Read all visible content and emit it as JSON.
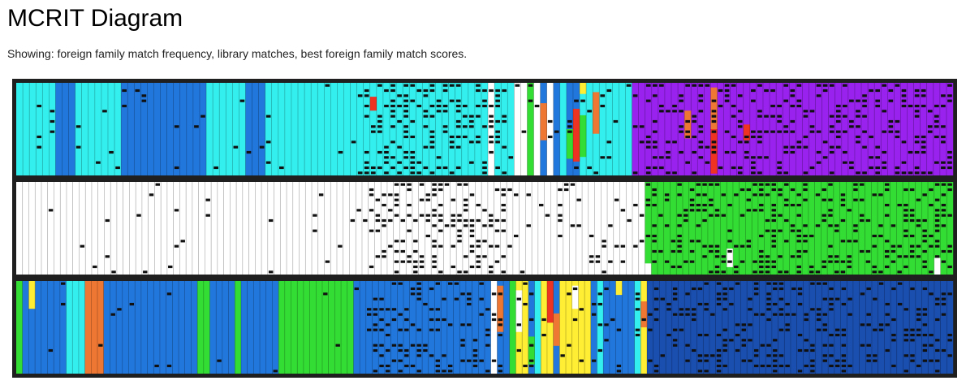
{
  "page": {
    "title": "MCRIT Diagram",
    "subtitle": "Showing: foreign family match frequency, library matches, best foreign family match scores."
  },
  "diagram": {
    "rows": [
      {
        "segments": [
          [
            "#33f0ee",
            6
          ],
          [
            "#2277dd",
            3
          ],
          [
            "#33f0ee",
            7
          ],
          [
            "#2277dd",
            13
          ],
          [
            "#33f0ee",
            6
          ],
          [
            "#2277dd",
            3
          ],
          [
            "#33f0ee",
            12
          ],
          [
            "#33f0ee",
            22
          ],
          [
            "#ffffff",
            1
          ],
          [
            "#33f0ee",
            3
          ],
          [
            "#ffffff",
            2
          ],
          [
            "#33dd33",
            1
          ],
          [
            "#ffffff",
            1
          ],
          [
            "#2277dd",
            1
          ],
          [
            "#ffffff",
            1
          ],
          [
            "#2277dd",
            1
          ],
          [
            "#33f0ee",
            1
          ],
          [
            "#2277dd",
            2
          ],
          [
            "#33f0ee",
            8
          ],
          [
            "#9922ee",
            49
          ]
        ],
        "overlays": [
          {
            "col": 80,
            "color": "#ee7733",
            "from": 0.22,
            "to": 0.62
          },
          {
            "col": 84,
            "color": "#33dd33",
            "from": 0.5,
            "to": 0.82
          },
          {
            "col": 85,
            "color": "#ee3322",
            "from": 0.28,
            "to": 0.85
          },
          {
            "col": 86,
            "color": "#ffee33",
            "from": 0.0,
            "to": 0.12
          },
          {
            "col": 86,
            "color": "#33dd33",
            "from": 0.35,
            "to": 0.8
          },
          {
            "col": 88,
            "color": "#ee7733",
            "from": 0.1,
            "to": 0.55
          },
          {
            "col": 102,
            "color": "#ee7733",
            "from": 0.3,
            "to": 0.6
          },
          {
            "col": 106,
            "color": "#ee7733",
            "from": 0.05,
            "to": 0.5
          },
          {
            "col": 106,
            "color": "#ee3322",
            "from": 0.5,
            "to": 0.98
          },
          {
            "col": 111,
            "color": "#ee3322",
            "from": 0.45,
            "to": 0.62
          },
          {
            "col": 54,
            "color": "#ee3322",
            "from": 0.15,
            "to": 0.3
          },
          {
            "col": 145,
            "color": "#ffffff",
            "from": 0.86,
            "to": 1.0
          },
          {
            "col": 145,
            "color": "#ffee33",
            "from": 0.75,
            "to": 0.86
          }
        ]
      },
      {
        "segments": [
          [
            "#ffffff",
            100
          ],
          [
            "#33dd33",
            49
          ]
        ],
        "overlays": [
          {
            "col": 113,
            "color": "#ffffff",
            "from": 0.72,
            "to": 0.92
          },
          {
            "col": 146,
            "color": "#ffffff",
            "from": 0.82,
            "to": 1.0
          },
          {
            "col": 100,
            "color": "#ffffff",
            "from": 0.88,
            "to": 1.0
          }
        ]
      },
      {
        "segments": [
          [
            "#33dd33",
            1
          ],
          [
            "#2277dd",
            7
          ],
          [
            "#33f0ee",
            3
          ],
          [
            "#ee7733",
            3
          ],
          [
            "#2277dd",
            6
          ],
          [
            "#2277dd",
            9
          ],
          [
            "#33dd33",
            2
          ],
          [
            "#2277dd",
            4
          ],
          [
            "#33dd33",
            1
          ],
          [
            "#2277dd",
            6
          ],
          [
            "#33dd33",
            12
          ],
          [
            "#2277dd",
            22
          ],
          [
            "#ffffff",
            1
          ],
          [
            "#2277dd",
            2
          ],
          [
            "#33dd33",
            1
          ],
          [
            "#ffee33",
            2
          ],
          [
            "#2277dd",
            1
          ],
          [
            "#33f0ee",
            1
          ],
          [
            "#ffee33",
            2
          ],
          [
            "#2277dd",
            1
          ],
          [
            "#ffee33",
            5
          ],
          [
            "#2277dd",
            1
          ],
          [
            "#33f0ee",
            1
          ],
          [
            "#2277dd",
            4
          ],
          [
            "#2277dd",
            1
          ],
          [
            "#33f0ee",
            1
          ],
          [
            "#ffee33",
            1
          ],
          [
            "#1a4fb0",
            49
          ]
        ],
        "overlays": [
          {
            "col": 2,
            "color": "#ffee33",
            "from": 0.0,
            "to": 0.3
          },
          {
            "col": 77,
            "color": "#ee7733",
            "from": 0.05,
            "to": 0.55
          },
          {
            "col": 80,
            "color": "#ffffff",
            "from": 0.1,
            "to": 0.55
          },
          {
            "col": 82,
            "color": "#33dd33",
            "from": 0.6,
            "to": 0.9
          },
          {
            "col": 85,
            "color": "#ee3322",
            "from": 0.0,
            "to": 0.45
          },
          {
            "col": 86,
            "color": "#ee7733",
            "from": 0.35,
            "to": 0.7
          },
          {
            "col": 89,
            "color": "#ffffff",
            "from": 0.05,
            "to": 0.3
          },
          {
            "col": 96,
            "color": "#ffee33",
            "from": 0.0,
            "to": 0.15
          },
          {
            "col": 100,
            "color": "#ee7733",
            "from": 0.22,
            "to": 0.5
          }
        ]
      }
    ]
  }
}
